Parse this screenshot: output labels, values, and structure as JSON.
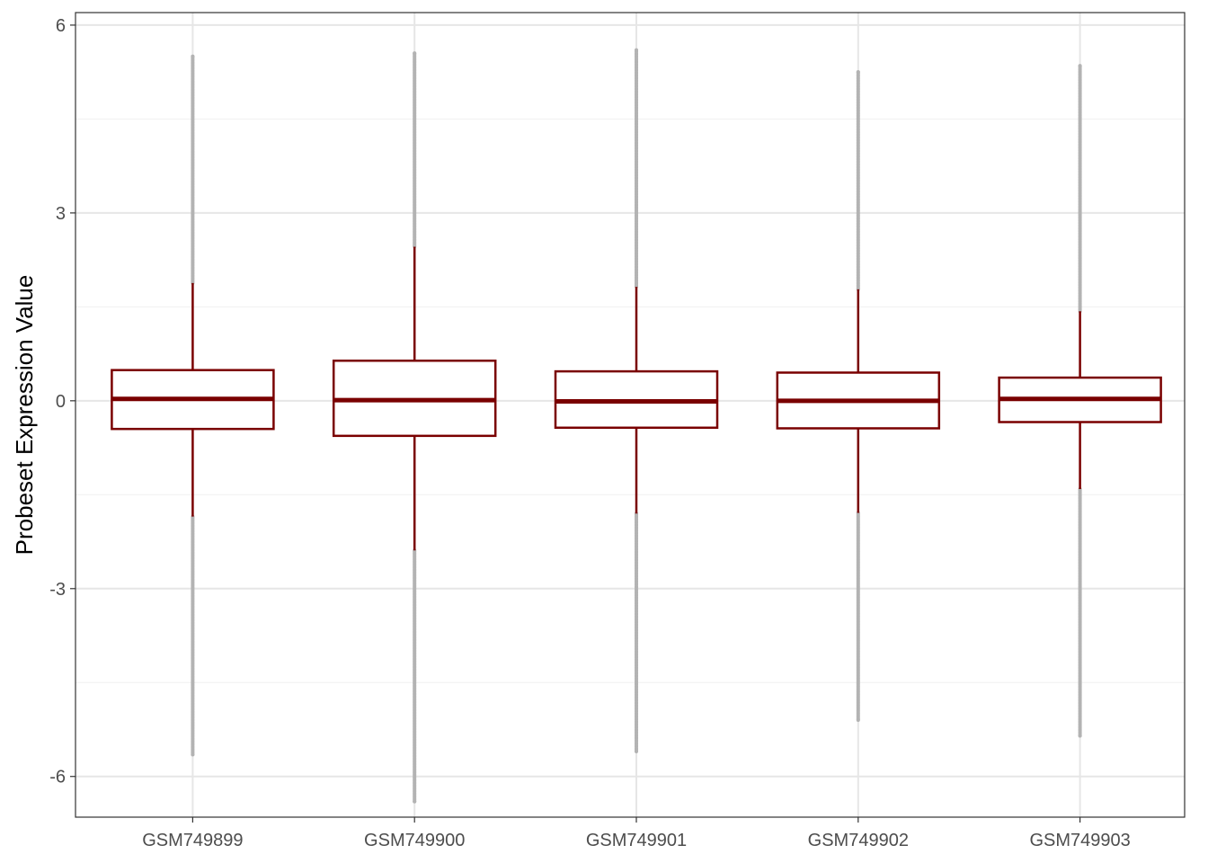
{
  "chart_data": {
    "type": "boxplot",
    "title": "",
    "xlabel": "",
    "ylabel": "Probeset Expression Value",
    "ylim": [
      -6.65,
      6.2
    ],
    "yticks": [
      -6,
      -3,
      0,
      3,
      6
    ],
    "ytick_labels": [
      "-6",
      "-3",
      "0",
      "3",
      "6"
    ],
    "categories": [
      "GSM749899",
      "GSM749900",
      "GSM749901",
      "GSM749902",
      "GSM749903"
    ],
    "boxes": [
      {
        "name": "GSM749899",
        "q1": -0.45,
        "median": 0.03,
        "q3": 0.49,
        "whisker_low": -1.85,
        "whisker_high": 1.88,
        "outlier_low": -5.65,
        "outlier_high": 5.5
      },
      {
        "name": "GSM749900",
        "q1": -0.56,
        "median": 0.01,
        "q3": 0.64,
        "whisker_low": -2.39,
        "whisker_high": 2.46,
        "outlier_low": -6.4,
        "outlier_high": 5.55
      },
      {
        "name": "GSM749901",
        "q1": -0.43,
        "median": -0.01,
        "q3": 0.47,
        "whisker_low": -1.8,
        "whisker_high": 1.82,
        "outlier_low": -5.6,
        "outlier_high": 5.6
      },
      {
        "name": "GSM749902",
        "q1": -0.44,
        "median": 0.0,
        "q3": 0.45,
        "whisker_low": -1.79,
        "whisker_high": 1.78,
        "outlier_low": -5.1,
        "outlier_high": 5.25
      },
      {
        "name": "GSM749903",
        "q1": -0.34,
        "median": 0.03,
        "q3": 0.37,
        "whisker_low": -1.41,
        "whisker_high": 1.43,
        "outlier_low": -5.35,
        "outlier_high": 5.35
      }
    ],
    "grid": true,
    "legend": "none",
    "colors": {
      "box": "#7a0000",
      "outlier": "#b3b3b3",
      "grid_major": "#e6e6e6",
      "grid_minor": "#f0f0f0",
      "frame": "#333333"
    }
  }
}
